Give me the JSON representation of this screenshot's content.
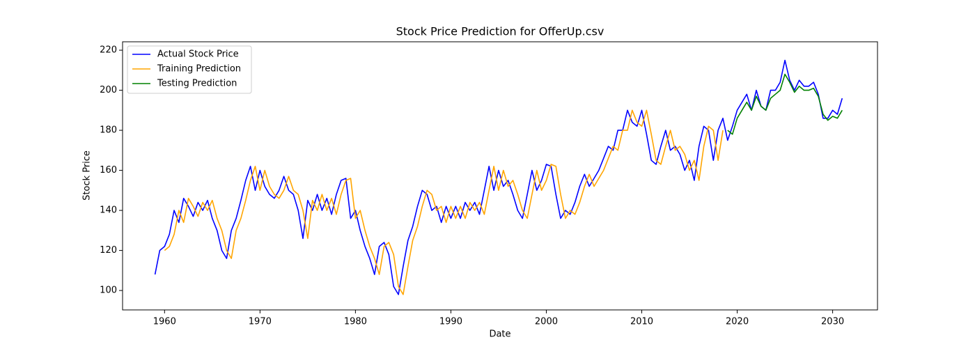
{
  "chart_data": {
    "type": "line",
    "title": "Stock Price Prediction for OfferUp.csv",
    "x_label": "Date",
    "y_label": "Stock Price",
    "x": [
      1959.0,
      1959.5,
      1960.0,
      1960.5,
      1961.0,
      1961.5,
      1962.0,
      1962.5,
      1963.0,
      1963.5,
      1964.0,
      1964.5,
      1965.0,
      1965.5,
      1966.0,
      1966.5,
      1967.0,
      1967.5,
      1968.0,
      1968.5,
      1969.0,
      1969.5,
      1970.0,
      1970.5,
      1971.0,
      1971.5,
      1972.0,
      1972.5,
      1973.0,
      1973.5,
      1974.0,
      1974.5,
      1975.0,
      1975.5,
      1976.0,
      1976.5,
      1977.0,
      1977.5,
      1978.0,
      1978.5,
      1979.0,
      1979.5,
      1980.0,
      1980.5,
      1981.0,
      1981.5,
      1982.0,
      1982.5,
      1983.0,
      1983.5,
      1984.0,
      1984.5,
      1985.0,
      1985.5,
      1986.0,
      1986.5,
      1987.0,
      1987.5,
      1988.0,
      1988.5,
      1989.0,
      1989.5,
      1990.0,
      1990.5,
      1991.0,
      1991.5,
      1992.0,
      1992.5,
      1993.0,
      1993.5,
      1994.0,
      1994.5,
      1995.0,
      1995.5,
      1996.0,
      1996.5,
      1997.0,
      1997.5,
      1998.0,
      1998.5,
      1999.0,
      1999.5,
      2000.0,
      2000.5,
      2001.0,
      2001.5,
      2002.0,
      2002.5,
      2003.0,
      2003.5,
      2004.0,
      2004.5,
      2005.0,
      2005.5,
      2006.0,
      2006.5,
      2007.0,
      2007.5,
      2008.0,
      2008.5,
      2009.0,
      2009.5,
      2010.0,
      2010.5,
      2011.0,
      2011.5,
      2012.0,
      2012.5,
      2013.0,
      2013.5,
      2014.0,
      2014.5,
      2015.0,
      2015.5,
      2016.0,
      2016.5,
      2017.0,
      2017.5,
      2018.0,
      2018.5,
      2019.0,
      2019.5,
      2020.0,
      2020.5,
      2021.0,
      2021.5,
      2022.0,
      2022.5,
      2023.0,
      2023.5,
      2024.0,
      2024.5,
      2025.0,
      2025.5,
      2026.0,
      2026.5,
      2027.0,
      2027.5,
      2028.0,
      2028.5,
      2029.0,
      2029.5,
      2030.0,
      2030.5,
      2031.0
    ],
    "series": [
      {
        "name": "Actual Stock Price",
        "color": "#0000ff",
        "values": [
          108,
          120,
          122,
          128,
          140,
          134,
          146,
          142,
          137,
          144,
          140,
          145,
          136,
          130,
          120,
          116,
          130,
          136,
          145,
          155,
          162,
          150,
          160,
          152,
          148,
          146,
          150,
          157,
          150,
          148,
          140,
          126,
          145,
          140,
          148,
          140,
          146,
          138,
          148,
          155,
          156,
          136,
          140,
          130,
          122,
          116,
          108,
          122,
          124,
          118,
          102,
          98,
          112,
          125,
          132,
          142,
          150,
          148,
          140,
          142,
          134,
          142,
          136,
          142,
          136,
          144,
          140,
          144,
          138,
          150,
          162,
          150,
          160,
          152,
          155,
          148,
          140,
          136,
          148,
          160,
          150,
          155,
          163,
          162,
          148,
          136,
          140,
          138,
          144,
          152,
          158,
          152,
          156,
          160,
          166,
          172,
          170,
          180,
          180,
          190,
          184,
          182,
          190,
          178,
          165,
          163,
          172,
          180,
          170,
          172,
          168,
          160,
          165,
          155,
          172,
          182,
          180,
          165,
          180,
          186,
          175,
          182,
          190,
          194,
          198,
          190,
          200,
          192,
          190,
          200,
          200,
          204,
          215,
          205,
          200,
          205,
          202,
          202,
          204,
          198,
          186,
          186,
          190,
          188,
          196
        ]
      },
      {
        "name": "Training Prediction",
        "color": "#ffa500",
        "values": [
          null,
          null,
          120,
          122,
          128,
          140,
          134,
          146,
          142,
          137,
          144,
          140,
          145,
          136,
          130,
          120,
          116,
          130,
          136,
          145,
          155,
          162,
          150,
          160,
          152,
          148,
          146,
          150,
          157,
          150,
          148,
          140,
          126,
          145,
          140,
          148,
          140,
          146,
          138,
          148,
          155,
          156,
          136,
          140,
          130,
          122,
          116,
          108,
          122,
          124,
          118,
          102,
          98,
          112,
          125,
          132,
          142,
          150,
          148,
          140,
          142,
          134,
          142,
          136,
          142,
          136,
          144,
          140,
          144,
          138,
          150,
          162,
          150,
          160,
          152,
          155,
          148,
          140,
          136,
          148,
          160,
          150,
          155,
          163,
          162,
          148,
          136,
          140,
          138,
          144,
          152,
          158,
          152,
          156,
          160,
          166,
          172,
          170,
          180,
          180,
          190,
          184,
          182,
          190,
          178,
          165,
          163,
          172,
          180,
          170,
          172,
          168,
          160,
          165,
          155,
          172,
          182,
          180,
          165,
          180,
          null,
          null,
          null,
          null,
          null,
          null,
          null,
          null,
          null,
          null,
          null,
          null,
          null,
          null,
          null,
          null,
          null,
          null,
          null,
          null,
          null,
          null,
          null,
          null,
          null
        ]
      },
      {
        "name": "Testing Prediction",
        "color": "#008000",
        "values": [
          null,
          null,
          null,
          null,
          null,
          null,
          null,
          null,
          null,
          null,
          null,
          null,
          null,
          null,
          null,
          null,
          null,
          null,
          null,
          null,
          null,
          null,
          null,
          null,
          null,
          null,
          null,
          null,
          null,
          null,
          null,
          null,
          null,
          null,
          null,
          null,
          null,
          null,
          null,
          null,
          null,
          null,
          null,
          null,
          null,
          null,
          null,
          null,
          null,
          null,
          null,
          null,
          null,
          null,
          null,
          null,
          null,
          null,
          null,
          null,
          null,
          null,
          null,
          null,
          null,
          null,
          null,
          null,
          null,
          null,
          null,
          null,
          null,
          null,
          null,
          null,
          null,
          null,
          null,
          null,
          null,
          null,
          null,
          null,
          null,
          null,
          null,
          null,
          null,
          null,
          null,
          null,
          null,
          null,
          null,
          null,
          null,
          null,
          null,
          null,
          null,
          null,
          null,
          null,
          null,
          null,
          null,
          null,
          null,
          null,
          null,
          null,
          null,
          null,
          null,
          null,
          null,
          null,
          null,
          null,
          180,
          178,
          186,
          190,
          194,
          190,
          197,
          192,
          190,
          196,
          198,
          200,
          208,
          204,
          199,
          202,
          200,
          200,
          201,
          197,
          188,
          185,
          187,
          186,
          190
        ]
      }
    ],
    "xlim": [
      1955.6,
      2034.7
    ],
    "xticks": [
      1960,
      1970,
      1980,
      1990,
      2000,
      2010,
      2020,
      2030
    ],
    "ylim": [
      90.3,
      224.2
    ],
    "yticks": [
      100,
      120,
      140,
      160,
      180,
      200,
      220
    ],
    "legend": "upper left"
  }
}
